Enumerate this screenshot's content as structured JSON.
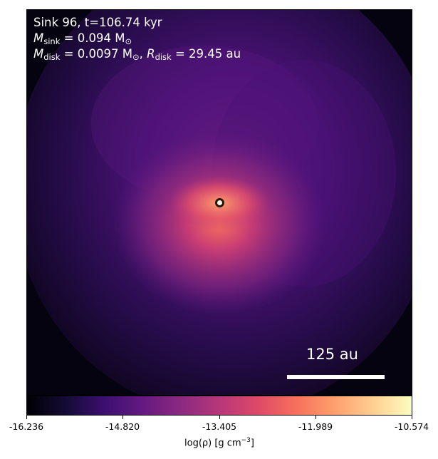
{
  "panel": {
    "sink_label": "Sink 96, t=106.74 kyr",
    "m_sink_symbol": "M",
    "m_sink_sub": "sink",
    "m_sink_value": "= 0.094 M",
    "m_sink_unit_sub": "⊙",
    "m_disk_symbol": "M",
    "m_disk_sub": "disk",
    "m_disk_value": "= 0.0097 M",
    "m_disk_unit_sub": "⊙",
    "separator": ", ",
    "r_disk_symbol": "R",
    "r_disk_sub": "disk",
    "r_disk_value": "= 29.45 au",
    "scale_bar_label": "125 au"
  },
  "colorbar": {
    "ticks": [
      "-16.236",
      "-14.820",
      "-13.405",
      "-11.989",
      "-10.574"
    ],
    "label_main": "log(ρ) [g cm",
    "label_exp": "−3",
    "label_close": "]",
    "colormap": "inferno"
  },
  "image": {
    "description_colors": {
      "background": "#05030f",
      "center": "#fff6e8",
      "ring": "#2a1608"
    }
  }
}
